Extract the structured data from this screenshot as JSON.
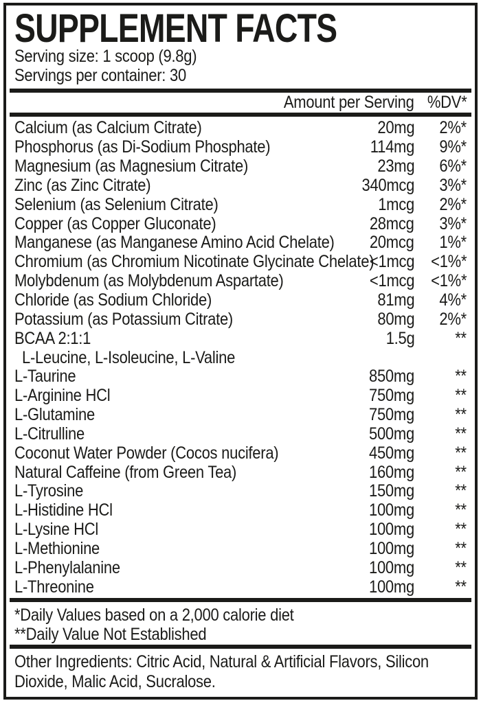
{
  "label": {
    "title": "SUPPLEMENT FACTS",
    "serving_size": "Serving size: 1 scoop (9.8g)",
    "servings_per_container": "Servings per container: 30",
    "ink_color": "#1b1b19",
    "background_color": "#ffffff",
    "header": {
      "amount": "Amount per Serving",
      "dv": "%DV*"
    },
    "rows": [
      {
        "name": "Calcium (as Calcium Citrate)",
        "amount": "20mg",
        "dv": "2%*"
      },
      {
        "name": "Phosphorus (as Di-Sodium Phosphate)",
        "amount": "114mg",
        "dv": "9%*"
      },
      {
        "name": "Magnesium (as Magnesium Citrate)",
        "amount": "23mg",
        "dv": "6%*"
      },
      {
        "name": "Zinc (as Zinc Citrate)",
        "amount": "340mcg",
        "dv": "3%*"
      },
      {
        "name": "Selenium (as Selenium Citrate)",
        "amount": "1mcg",
        "dv": "2%*"
      },
      {
        "name": "Copper (as Copper Gluconate)",
        "amount": "28mcg",
        "dv": "3%*"
      },
      {
        "name": "Manganese (as Manganese Amino Acid Chelate)",
        "amount": "20mcg",
        "dv": "1%*"
      },
      {
        "name": "Chromium (as Chromium Nicotinate Glycinate Chelate)",
        "amount": "<1mcg",
        "dv": "<1%*"
      },
      {
        "name": "Molybdenum (as Molybdenum Aspartate)",
        "amount": "<1mcg",
        "dv": "<1%*"
      },
      {
        "name": "Chloride (as Sodium Chloride)",
        "amount": "81mg",
        "dv": "4%*"
      },
      {
        "name": "Potassium (as Potassium Citrate)",
        "amount": "80mg",
        "dv": "2%*"
      },
      {
        "name": "BCAA 2:1:1",
        "amount": "1.5g",
        "dv": "**"
      },
      {
        "name": "L-Leucine, L-Isoleucine, L-Valine",
        "amount": "",
        "dv": "",
        "indent": true
      },
      {
        "name": "L-Taurine",
        "amount": "850mg",
        "dv": "**"
      },
      {
        "name": "L-Arginine HCl",
        "amount": "750mg",
        "dv": "**"
      },
      {
        "name": "L-Glutamine",
        "amount": "750mg",
        "dv": "**"
      },
      {
        "name": "L-Citrulline",
        "amount": "500mg",
        "dv": "**"
      },
      {
        "name": "Coconut Water Powder (Cocos nucifera)",
        "amount": "450mg",
        "dv": "**"
      },
      {
        "name": "Natural Caffeine (from Green Tea)",
        "amount": "160mg",
        "dv": "**"
      },
      {
        "name": "L-Tyrosine",
        "amount": "150mg",
        "dv": "**"
      },
      {
        "name": "L-Histidine HCl",
        "amount": "100mg",
        "dv": "**"
      },
      {
        "name": "L-Lysine HCl",
        "amount": "100mg",
        "dv": "**"
      },
      {
        "name": "L-Methionine",
        "amount": "100mg",
        "dv": "**"
      },
      {
        "name": "L-Phenylalanine",
        "amount": "100mg",
        "dv": "**"
      },
      {
        "name": "L-Threonine",
        "amount": "100mg",
        "dv": "**"
      }
    ],
    "footnotes": [
      "*Daily Values based on a 2,000 calorie diet",
      "**Daily Value Not Established"
    ],
    "other_ingredients_lines": [
      "Other Ingredients: Citric Acid, Natural & Artificial Flavors, Silicon",
      "Dioxide, Malic Acid, Sucralose."
    ]
  }
}
